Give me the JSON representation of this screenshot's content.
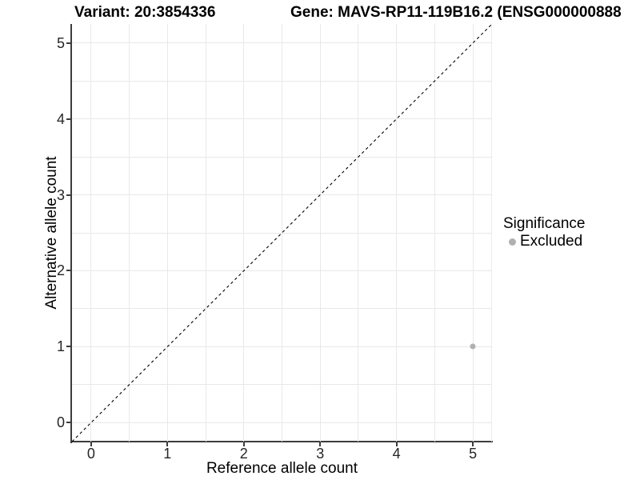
{
  "header": {
    "variant_title": "Variant: 20:3854336",
    "gene_title": "Gene: MAVS-RP11-119B16.2 (ENSG000000888"
  },
  "chart_data": {
    "type": "scatter",
    "title": "Variant: 20:3854336 / Gene: MAVS-RP11-119B16.2 (ENSG000000888",
    "xlabel": "Reference allele count",
    "ylabel": "Alternative allele count",
    "xlim": [
      -0.25,
      5.25
    ],
    "ylim": [
      -0.25,
      5.25
    ],
    "x_ticks": [
      0,
      1,
      2,
      3,
      4,
      5
    ],
    "y_ticks": [
      0,
      1,
      2,
      3,
      4,
      5
    ],
    "grid": true,
    "grid_interval": 0.5,
    "grid_color": "#e8e8e8",
    "axis_line_color": "#3c3c3c",
    "identity_line": {
      "equation": "y = x",
      "style": "dashed",
      "color": "#000000"
    },
    "series": [
      {
        "name": "Excluded",
        "color": "#b0b0b0",
        "points": [
          {
            "x": 5,
            "y": 1
          }
        ]
      }
    ],
    "legend": {
      "title": "Significance",
      "position": "right",
      "entries": [
        {
          "label": "Excluded",
          "color": "#b0b0b0",
          "marker": "circle"
        }
      ]
    }
  }
}
